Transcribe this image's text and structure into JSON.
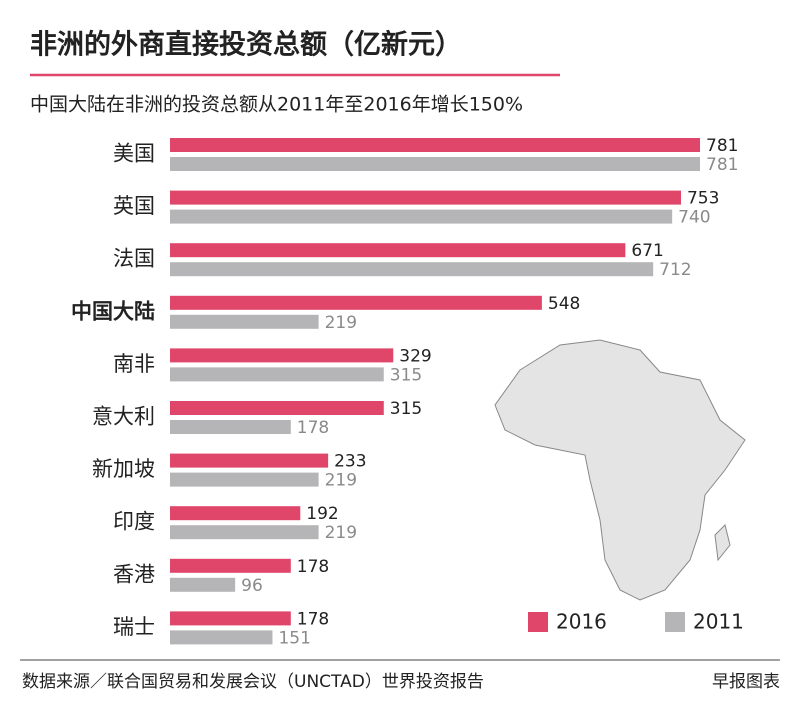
{
  "chart_data": {
    "type": "bar",
    "orientation": "horizontal",
    "title": "非洲的外商直接投资总额（亿新元）",
    "subtitle": "中国大陆在非洲的投资总额从2011年至2016年增长150%",
    "categories": [
      "美国",
      "英国",
      "法国",
      "中国大陆",
      "南非",
      "意大利",
      "新加坡",
      "印度",
      "香港",
      "瑞士"
    ],
    "highlight_category": "中国大陆",
    "series": [
      {
        "name": "2016",
        "color": "#e0456a",
        "label_color": "#222222",
        "values": [
          781,
          753,
          671,
          548,
          329,
          315,
          233,
          192,
          178,
          178
        ]
      },
      {
        "name": "2011",
        "color": "#b5b5b7",
        "label_color": "#8a8a8a",
        "values": [
          781,
          740,
          712,
          219,
          315,
          178,
          219,
          219,
          96,
          151
        ]
      }
    ],
    "legend": "bottom-right",
    "source": "数据来源／联合国贸易和发展会议（UNCTAD）世界投资报告",
    "credit": "早报图表"
  }
}
